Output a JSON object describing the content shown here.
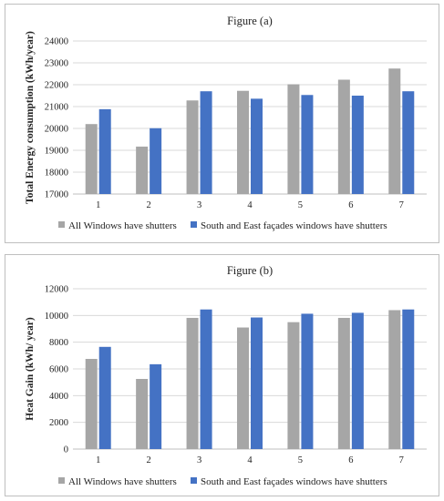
{
  "colors": {
    "series1": "#a6a6a6",
    "series2": "#4472c4",
    "grid": "#d9d9d9",
    "axis": "#bfbfbf"
  },
  "chart_data": [
    {
      "type": "bar",
      "title": "Figure (a)",
      "xlabel": "",
      "ylabel": "Total Energy consumption (kWh/year)",
      "ylim": [
        17000,
        24000
      ],
      "yticks": [
        17000,
        18000,
        19000,
        20000,
        21000,
        22000,
        23000,
        24000
      ],
      "grid": true,
      "legend_position": "bottom",
      "categories": [
        "1",
        "2",
        "3",
        "4",
        "5",
        "6",
        "7"
      ],
      "series": [
        {
          "name": "All Windows have shutters",
          "color": "#a6a6a6",
          "values": [
            20200,
            19170,
            21280,
            21720,
            22020,
            22230,
            22740
          ]
        },
        {
          "name": "South and East façades windows have shutters",
          "color": "#4472c4",
          "values": [
            20880,
            20010,
            21700,
            21360,
            21530,
            21500,
            21700
          ]
        }
      ]
    },
    {
      "type": "bar",
      "title": "Figure (b)",
      "xlabel": "",
      "ylabel": "Heat Gain (kWh/ year)",
      "ylim": [
        0,
        12000
      ],
      "yticks": [
        0,
        2000,
        4000,
        6000,
        8000,
        10000,
        12000
      ],
      "grid": true,
      "legend_position": "bottom",
      "categories": [
        "1",
        "2",
        "3",
        "4",
        "5",
        "6",
        "7"
      ],
      "series": [
        {
          "name": "All Windows have shutters",
          "color": "#a6a6a6",
          "values": [
            6750,
            5250,
            9820,
            9100,
            9500,
            9820,
            10400
          ]
        },
        {
          "name": "South and East façades windows have shutters",
          "color": "#4472c4",
          "values": [
            7650,
            6350,
            10450,
            9850,
            10130,
            10200,
            10450
          ]
        }
      ]
    }
  ]
}
